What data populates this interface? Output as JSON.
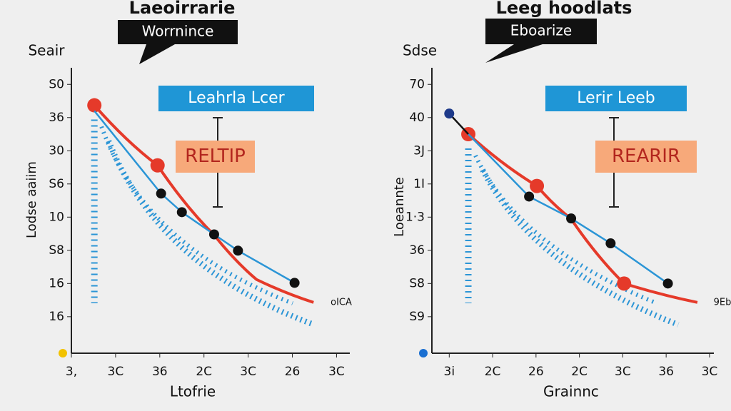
{
  "chart_data": [
    {
      "type": "line",
      "title": "Laeoirrarie",
      "callout": "Worrnince",
      "legend_box": "Leahrla Lcer",
      "highlight": "RELTIP",
      "y_title": "Seair",
      "ylabel": "Lodse aaiim",
      "xlabel": "Ltofrie",
      "end_label": "oICA",
      "xlim": [
        0,
        6.3
      ],
      "ylim": [
        -0.1,
        8.5
      ],
      "xticks": [
        {
          "value": 0,
          "label": "3,"
        },
        {
          "value": 1,
          "label": "3C"
        },
        {
          "value": 2,
          "label": "36"
        },
        {
          "value": 3,
          "label": "2C"
        },
        {
          "value": 4,
          "label": "3C"
        },
        {
          "value": 5,
          "label": "26"
        },
        {
          "value": 6,
          "label": "3C"
        }
      ],
      "yticks": [
        {
          "value": 8,
          "label": "S0"
        },
        {
          "value": 7,
          "label": "36"
        },
        {
          "value": 6,
          "label": "30"
        },
        {
          "value": 5,
          "label": "S6"
        },
        {
          "value": 4,
          "label": "10"
        },
        {
          "value": 3,
          "label": "S8"
        },
        {
          "value": 2,
          "label": "16"
        },
        {
          "value": 1,
          "label": "16"
        }
      ],
      "series": [
        {
          "color": "#e53a2a",
          "x": [
            0.52,
            1.95,
            3.23,
            4.19,
            5.48
          ],
          "values": [
            7.37,
            5.56,
            3.46,
            2.12,
            1.43
          ],
          "markers": [
            true,
            true,
            false,
            false,
            false
          ]
        },
        {
          "color": "#111111",
          "line_color": "#2b95d6",
          "x": [
            0.52,
            2.03,
            2.5,
            3.23,
            3.77,
            5.05
          ],
          "values": [
            7.2,
            4.71,
            4.15,
            3.48,
            2.99,
            2.02
          ],
          "markers": [
            false,
            true,
            true,
            true,
            true,
            true
          ]
        }
      ]
    },
    {
      "type": "line",
      "title": "Leeg hoodlats",
      "callout": "Eboarize",
      "legend_box": "Lerir Leeb",
      "highlight": "REARIR",
      "y_title": "Sdse",
      "ylabel": "Loeannte",
      "xlabel": "Grainnc",
      "end_label": "9Eb",
      "xlim": [
        -0.4,
        6.1
      ],
      "ylim": [
        -0.1,
        8.5
      ],
      "xticks": [
        {
          "value": 0,
          "label": "3i"
        },
        {
          "value": 1,
          "label": "2C"
        },
        {
          "value": 2,
          "label": "26"
        },
        {
          "value": 3,
          "label": "2C"
        },
        {
          "value": 4,
          "label": "3C"
        },
        {
          "value": 5,
          "label": "36"
        },
        {
          "value": 6,
          "label": "3C"
        }
      ],
      "yticks": [
        {
          "value": 8,
          "label": "70"
        },
        {
          "value": 7,
          "label": "40"
        },
        {
          "value": 6,
          "label": "3J"
        },
        {
          "value": 5,
          "label": "1I"
        },
        {
          "value": 4,
          "label": "1·3"
        },
        {
          "value": 3,
          "label": "36"
        },
        {
          "value": 2,
          "label": "S8"
        },
        {
          "value": 1,
          "label": "S9"
        }
      ],
      "series": [
        {
          "color": "#e53a2a",
          "x": [
            0.44,
            2.02,
            2.8,
            4.03,
            5.72
          ],
          "values": [
            6.5,
            4.94,
            3.96,
            2.0,
            1.43
          ],
          "markers": [
            true,
            true,
            false,
            true,
            false
          ]
        },
        {
          "color": "#111111",
          "line_color": "#2b95d6",
          "x": [
            0.44,
            1.84,
            2.81,
            3.72,
            5.04
          ],
          "values": [
            6.5,
            4.62,
            3.96,
            3.21,
            2.0
          ],
          "markers": [
            false,
            true,
            true,
            true,
            true
          ]
        },
        {
          "color": "#1e3a8a",
          "line_color": "#111111",
          "x": [
            0,
            0.44
          ],
          "values": [
            7.12,
            6.5
          ],
          "markers": [
            true,
            false
          ]
        }
      ]
    }
  ]
}
